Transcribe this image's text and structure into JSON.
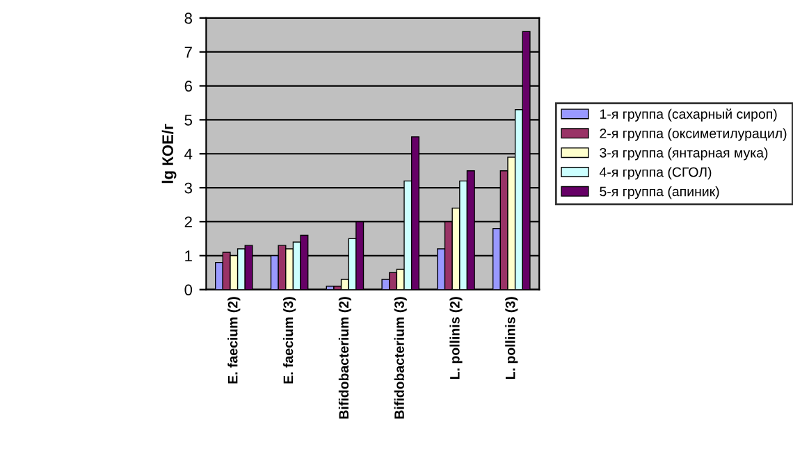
{
  "chart_data": {
    "type": "bar",
    "ylabel": "lg КОЕ/г",
    "categories": [
      "E. faecium (2)",
      "E. faecium (3)",
      "Bifidobacterium (2)",
      "Bifidobacterium (3)",
      "L. pollinis (2)",
      "L. pollinis (3)"
    ],
    "series": [
      {
        "name": "1-я группа (сахарный сироп)",
        "color": "#9999ff",
        "values": [
          0.8,
          1.0,
          0.1,
          0.3,
          1.2,
          1.8
        ]
      },
      {
        "name": "2-я группа (оксиметилурацил)",
        "color": "#993366",
        "values": [
          1.1,
          1.3,
          0.1,
          0.5,
          2.0,
          3.5
        ]
      },
      {
        "name": "3-я группа (янтарная мука)",
        "color": "#ffffcc",
        "values": [
          1.0,
          1.2,
          0.3,
          0.6,
          2.4,
          3.9
        ]
      },
      {
        "name": "4-я группа (СГОЛ)",
        "color": "#ccffff",
        "values": [
          1.2,
          1.4,
          1.5,
          3.2,
          3.2,
          5.3
        ]
      },
      {
        "name": "5-я группа (апиник)",
        "color": "#660066",
        "values": [
          1.3,
          1.6,
          2.0,
          4.5,
          3.5,
          7.6
        ]
      }
    ],
    "ylim": [
      0,
      8
    ],
    "yticks": [
      0,
      1,
      2,
      3,
      4,
      5,
      6,
      7,
      8
    ],
    "grid": "y",
    "legend": "right"
  }
}
